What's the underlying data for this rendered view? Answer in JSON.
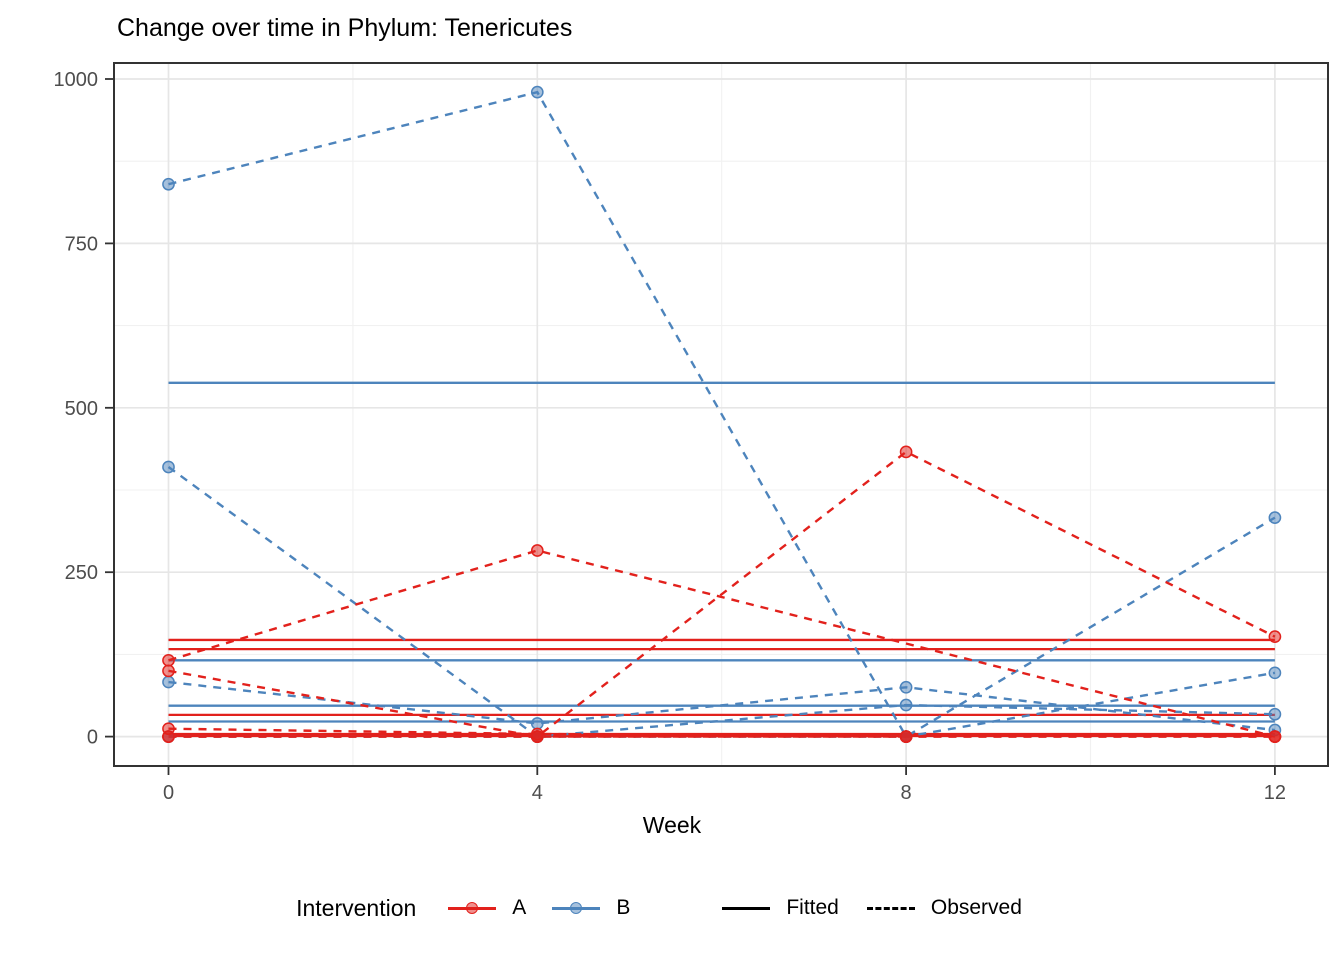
{
  "title": "Change over time in Phylum: Tenericutes",
  "axes": {
    "x_label": "Week"
  },
  "legend": {
    "title": "Intervention",
    "group_a_label": "A",
    "group_b_label": "B",
    "fitted_label": "Fitted",
    "observed_label": "Observed"
  },
  "colors": {
    "intervention_a": "#E2211C",
    "intervention_b": "#4D84BC",
    "grid_major": "#E6E6E6",
    "grid_minor": "#F1F1F1",
    "panel_border": "#333333",
    "axis_tick": "#333333",
    "tick_text": "#4D4D4D",
    "legend_key": "#000000"
  },
  "chart_data": {
    "type": "line",
    "title": "Change over time in Phylum: Tenericutes",
    "xlabel": "Week",
    "ylabel": "",
    "x_ticks": [
      0,
      4,
      8,
      12
    ],
    "y_ticks": [
      0,
      250,
      500,
      750,
      1000
    ],
    "x_minor": [
      2,
      6,
      10
    ],
    "y_minor": [
      125,
      375,
      625,
      875
    ],
    "xlim": [
      -0.6,
      12.6
    ],
    "ylim": [
      -49,
      1029
    ],
    "grid": true,
    "legend_position": "bottom",
    "linetype_legend": [
      "Fitted",
      "Observed"
    ],
    "series": [
      {
        "id": "B1",
        "group": "B",
        "weeks": [
          0,
          4,
          8,
          12
        ],
        "observed": [
          840,
          980,
          0,
          333
        ],
        "fitted": 538
      },
      {
        "id": "B2",
        "group": "B",
        "weeks": [
          0,
          4,
          8,
          12
        ],
        "observed": [
          410,
          0,
          48,
          34
        ],
        "fitted": 116
      },
      {
        "id": "B3",
        "group": "B",
        "weeks": [
          0,
          4,
          8,
          12
        ],
        "observed": [
          83,
          20,
          75,
          10
        ],
        "fitted": 47
      },
      {
        "id": "B4",
        "group": "B",
        "weeks": [
          0,
          4,
          8,
          12
        ],
        "observed": [
          0,
          0,
          0,
          97
        ],
        "fitted": 23
      },
      {
        "id": "A1",
        "group": "A",
        "weeks": [
          0,
          4,
          12
        ],
        "observed": [
          116,
          283,
          0
        ],
        "fitted": 133
      },
      {
        "id": "A2",
        "group": "A",
        "weeks": [
          0,
          4,
          8
        ],
        "observed": [
          100,
          0,
          0
        ],
        "fitted": 33
      },
      {
        "id": "A3",
        "group": "A",
        "weeks": [
          0,
          4,
          8,
          12
        ],
        "observed": [
          12,
          4,
          0,
          0
        ],
        "fitted": 4
      },
      {
        "id": "A4",
        "group": "A",
        "weeks": [
          0,
          4,
          8,
          12
        ],
        "observed": [
          0,
          0,
          433,
          152
        ],
        "fitted": 147
      },
      {
        "id": "A5",
        "group": "A",
        "weeks": [
          0,
          4,
          8,
          12
        ],
        "observed": [
          0,
          0,
          0,
          0
        ],
        "fitted": 1
      }
    ]
  }
}
